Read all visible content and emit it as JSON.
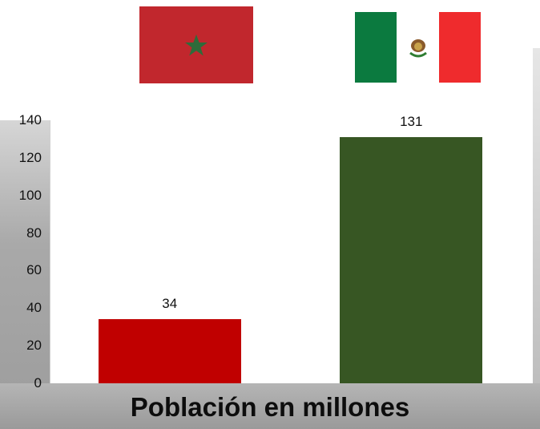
{
  "flags": [
    {
      "country": "Morocco",
      "icon": "morocco-flag-icon",
      "colors": {
        "field": "#c1272d",
        "star": "#2f6b3a"
      }
    },
    {
      "country": "Mexico",
      "icon": "mexico-flag-icon",
      "colors": {
        "left": "#0b7a3f",
        "middle": "#ffffff",
        "right": "#ef2b2d"
      }
    }
  ],
  "chart_data": {
    "type": "bar",
    "title": "Población en millones",
    "categories": [
      "",
      ""
    ],
    "values": [
      34,
      131
    ],
    "data_labels": [
      "34",
      "131"
    ],
    "bar_colors": [
      "#c00000",
      "#375623"
    ],
    "ylim": [
      0,
      140
    ],
    "yticks": [
      "0",
      "20",
      "40",
      "60",
      "80",
      "100",
      "120",
      "140"
    ],
    "grid": false,
    "legend": "none"
  }
}
